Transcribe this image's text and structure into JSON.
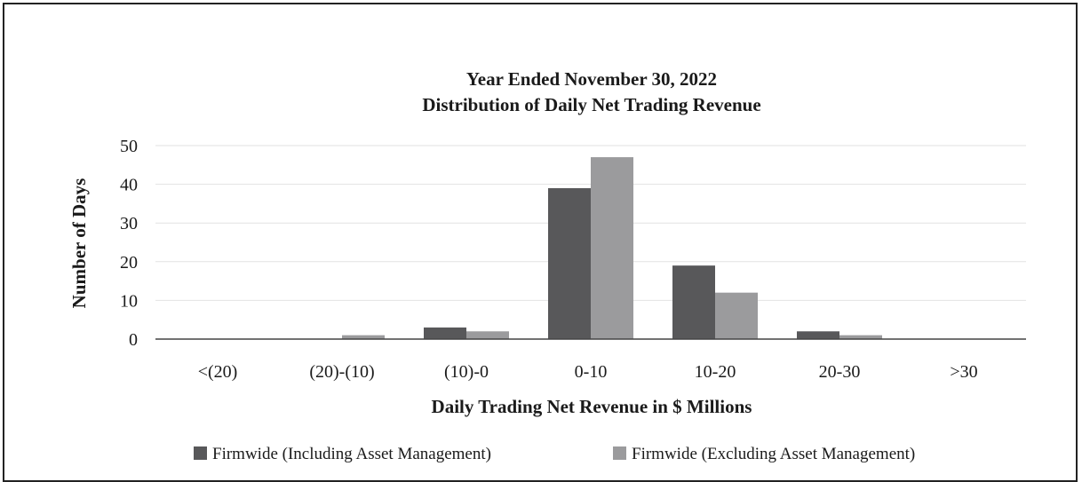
{
  "chart_data": {
    "type": "bar",
    "title": "Year Ended November 30, 2022",
    "subtitle": "Distribution of Daily Net Trading Revenue",
    "xlabel": "Daily Trading Net Revenue in $ Millions",
    "ylabel": "Number of Days",
    "categories": [
      "<(20)",
      "(20)-(10)",
      "(10)-0",
      "0-10",
      "10-20",
      "20-30",
      ">30"
    ],
    "ylim": [
      0,
      50
    ],
    "yticks": [
      "0",
      "10",
      "20",
      "30",
      "40",
      "50"
    ],
    "grid": true,
    "legend_position": "bottom",
    "series": [
      {
        "name": "Firmwide (Including Asset Management)",
        "color": "#58585a",
        "values": [
          0,
          0,
          3,
          39,
          19,
          2,
          0
        ]
      },
      {
        "name": "Firmwide (Excluding Asset Management)",
        "color": "#9b9b9d",
        "values": [
          0,
          1,
          2,
          47,
          12,
          1,
          0
        ]
      }
    ]
  }
}
